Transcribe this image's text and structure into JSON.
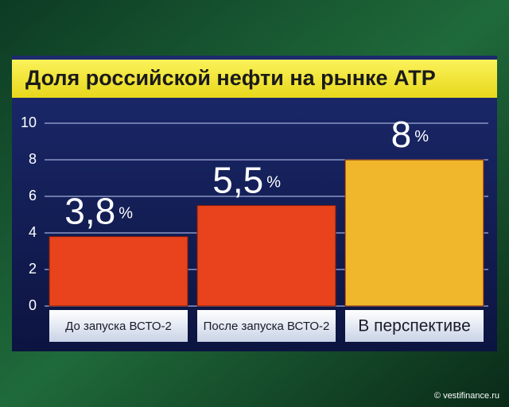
{
  "chart_data": {
    "type": "bar",
    "title": "Доля российской нефти на рынке АТР",
    "categories": [
      "До запуска ВСТО-2",
      "После запуска ВСТО-2",
      "В перспективе"
    ],
    "values": [
      3.8,
      5.5,
      8
    ],
    "value_labels": [
      "3,8",
      "5,5",
      "8"
    ],
    "unit": "%",
    "colors": [
      "#e8431d",
      "#e8431d",
      "#f0b72c"
    ],
    "ylim": [
      0,
      10
    ],
    "yticks": [
      0,
      2,
      4,
      6,
      8,
      10
    ],
    "grid": true,
    "source": "© vestifinance.ru"
  }
}
